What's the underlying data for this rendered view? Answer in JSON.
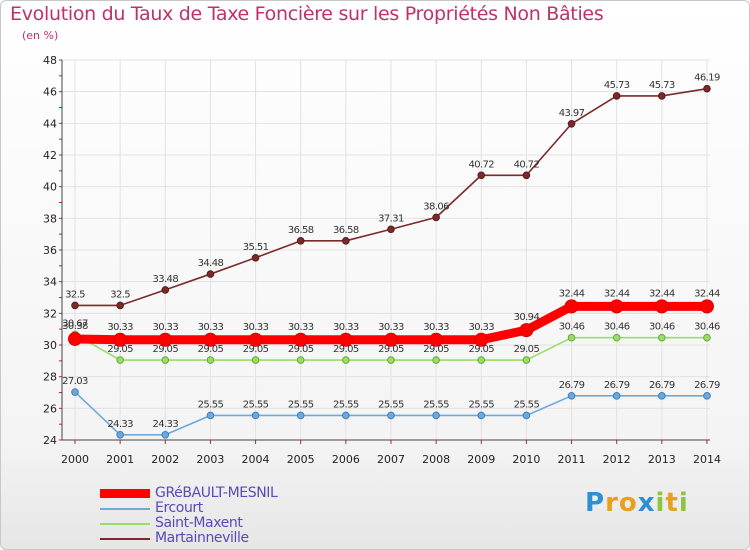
{
  "title": "Evolution du Taux de Taxe Foncière sur les Propriétés Non Bâties",
  "unit_label": "(en %)",
  "logo": {
    "text": "Proxiti",
    "letters": [
      {
        "ch": "P",
        "color": "#2f8fd6"
      },
      {
        "ch": "r",
        "color": "#e8a020"
      },
      {
        "ch": "o",
        "color": "#e8a020"
      },
      {
        "ch": "x",
        "color": "#2f8fd6"
      },
      {
        "ch": "i",
        "color": "#8cc63f"
      },
      {
        "ch": "t",
        "color": "#e8a020"
      },
      {
        "ch": "i",
        "color": "#8cc63f"
      }
    ]
  },
  "chart_data": {
    "type": "line",
    "title": "Evolution du Taux de Taxe Foncière sur les Propriétés Non Bâties",
    "ylabel": "(en %)",
    "xlabel": "",
    "x": [
      "2000",
      "2001",
      "2002",
      "2003",
      "2004",
      "2005",
      "2006",
      "2007",
      "2008",
      "2009",
      "2010",
      "2011",
      "2012",
      "2013",
      "2014"
    ],
    "ylim": [
      24,
      48
    ],
    "yticks": [
      "24",
      "26",
      "28",
      "30",
      "32",
      "34",
      "36",
      "38",
      "40",
      "42",
      "44",
      "46",
      "48"
    ],
    "grid": true,
    "legend_position": "bottom-left",
    "series": [
      {
        "name": "GRéBAULT-MESNIL",
        "color": "#ff0000",
        "values": [
          30.38,
          30.33,
          30.33,
          30.33,
          30.33,
          30.33,
          30.33,
          30.33,
          30.33,
          30.33,
          30.94,
          32.44,
          32.44,
          32.44,
          32.44
        ],
        "labels": [
          "30.38",
          "30.33",
          "30.33",
          "30.33",
          "30.33",
          "30.33",
          "30.33",
          "30.33",
          "30.33",
          "30.33",
          "30.94",
          "32.44",
          "32.44",
          "32.44",
          "32.44"
        ]
      },
      {
        "name": "Ercourt",
        "color": "#6fa8dc",
        "values": [
          27.03,
          24.33,
          24.33,
          25.55,
          25.55,
          25.55,
          25.55,
          25.55,
          25.55,
          25.55,
          25.55,
          26.79,
          26.79,
          26.79,
          26.79
        ],
        "labels": [
          "27.03",
          "24.33",
          "24.33",
          "25.55",
          "25.55",
          "25.55",
          "25.55",
          "25.55",
          "25.55",
          "25.55",
          "25.55",
          "26.79",
          "26.79",
          "26.79",
          "26.79"
        ]
      },
      {
        "name": "Saint-Maxent",
        "color": "#99dd66",
        "values": [
          30.67,
          29.05,
          29.05,
          29.05,
          29.05,
          29.05,
          29.05,
          29.05,
          29.05,
          29.05,
          29.05,
          30.46,
          30.46,
          30.46,
          30.46
        ],
        "labels": [
          "30.67",
          "29.05",
          "29.05",
          "29.05",
          "29.05",
          "29.05",
          "29.05",
          "29.05",
          "29.05",
          "29.05",
          "29.05",
          "30.46",
          "30.46",
          "30.46",
          "30.46"
        ]
      },
      {
        "name": "Martainneville",
        "color": "#7a2a2a",
        "values": [
          32.5,
          32.5,
          33.48,
          34.48,
          35.51,
          36.58,
          36.58,
          37.31,
          38.06,
          40.72,
          40.72,
          43.97,
          45.73,
          45.73,
          46.19
        ],
        "labels": [
          "32.5",
          "32.5",
          "33.48",
          "34.48",
          "35.51",
          "36.58",
          "36.58",
          "37.31",
          "38.06",
          "40.72",
          "40.72",
          "43.97",
          "45.73",
          "45.73",
          "46.19"
        ]
      }
    ]
  }
}
